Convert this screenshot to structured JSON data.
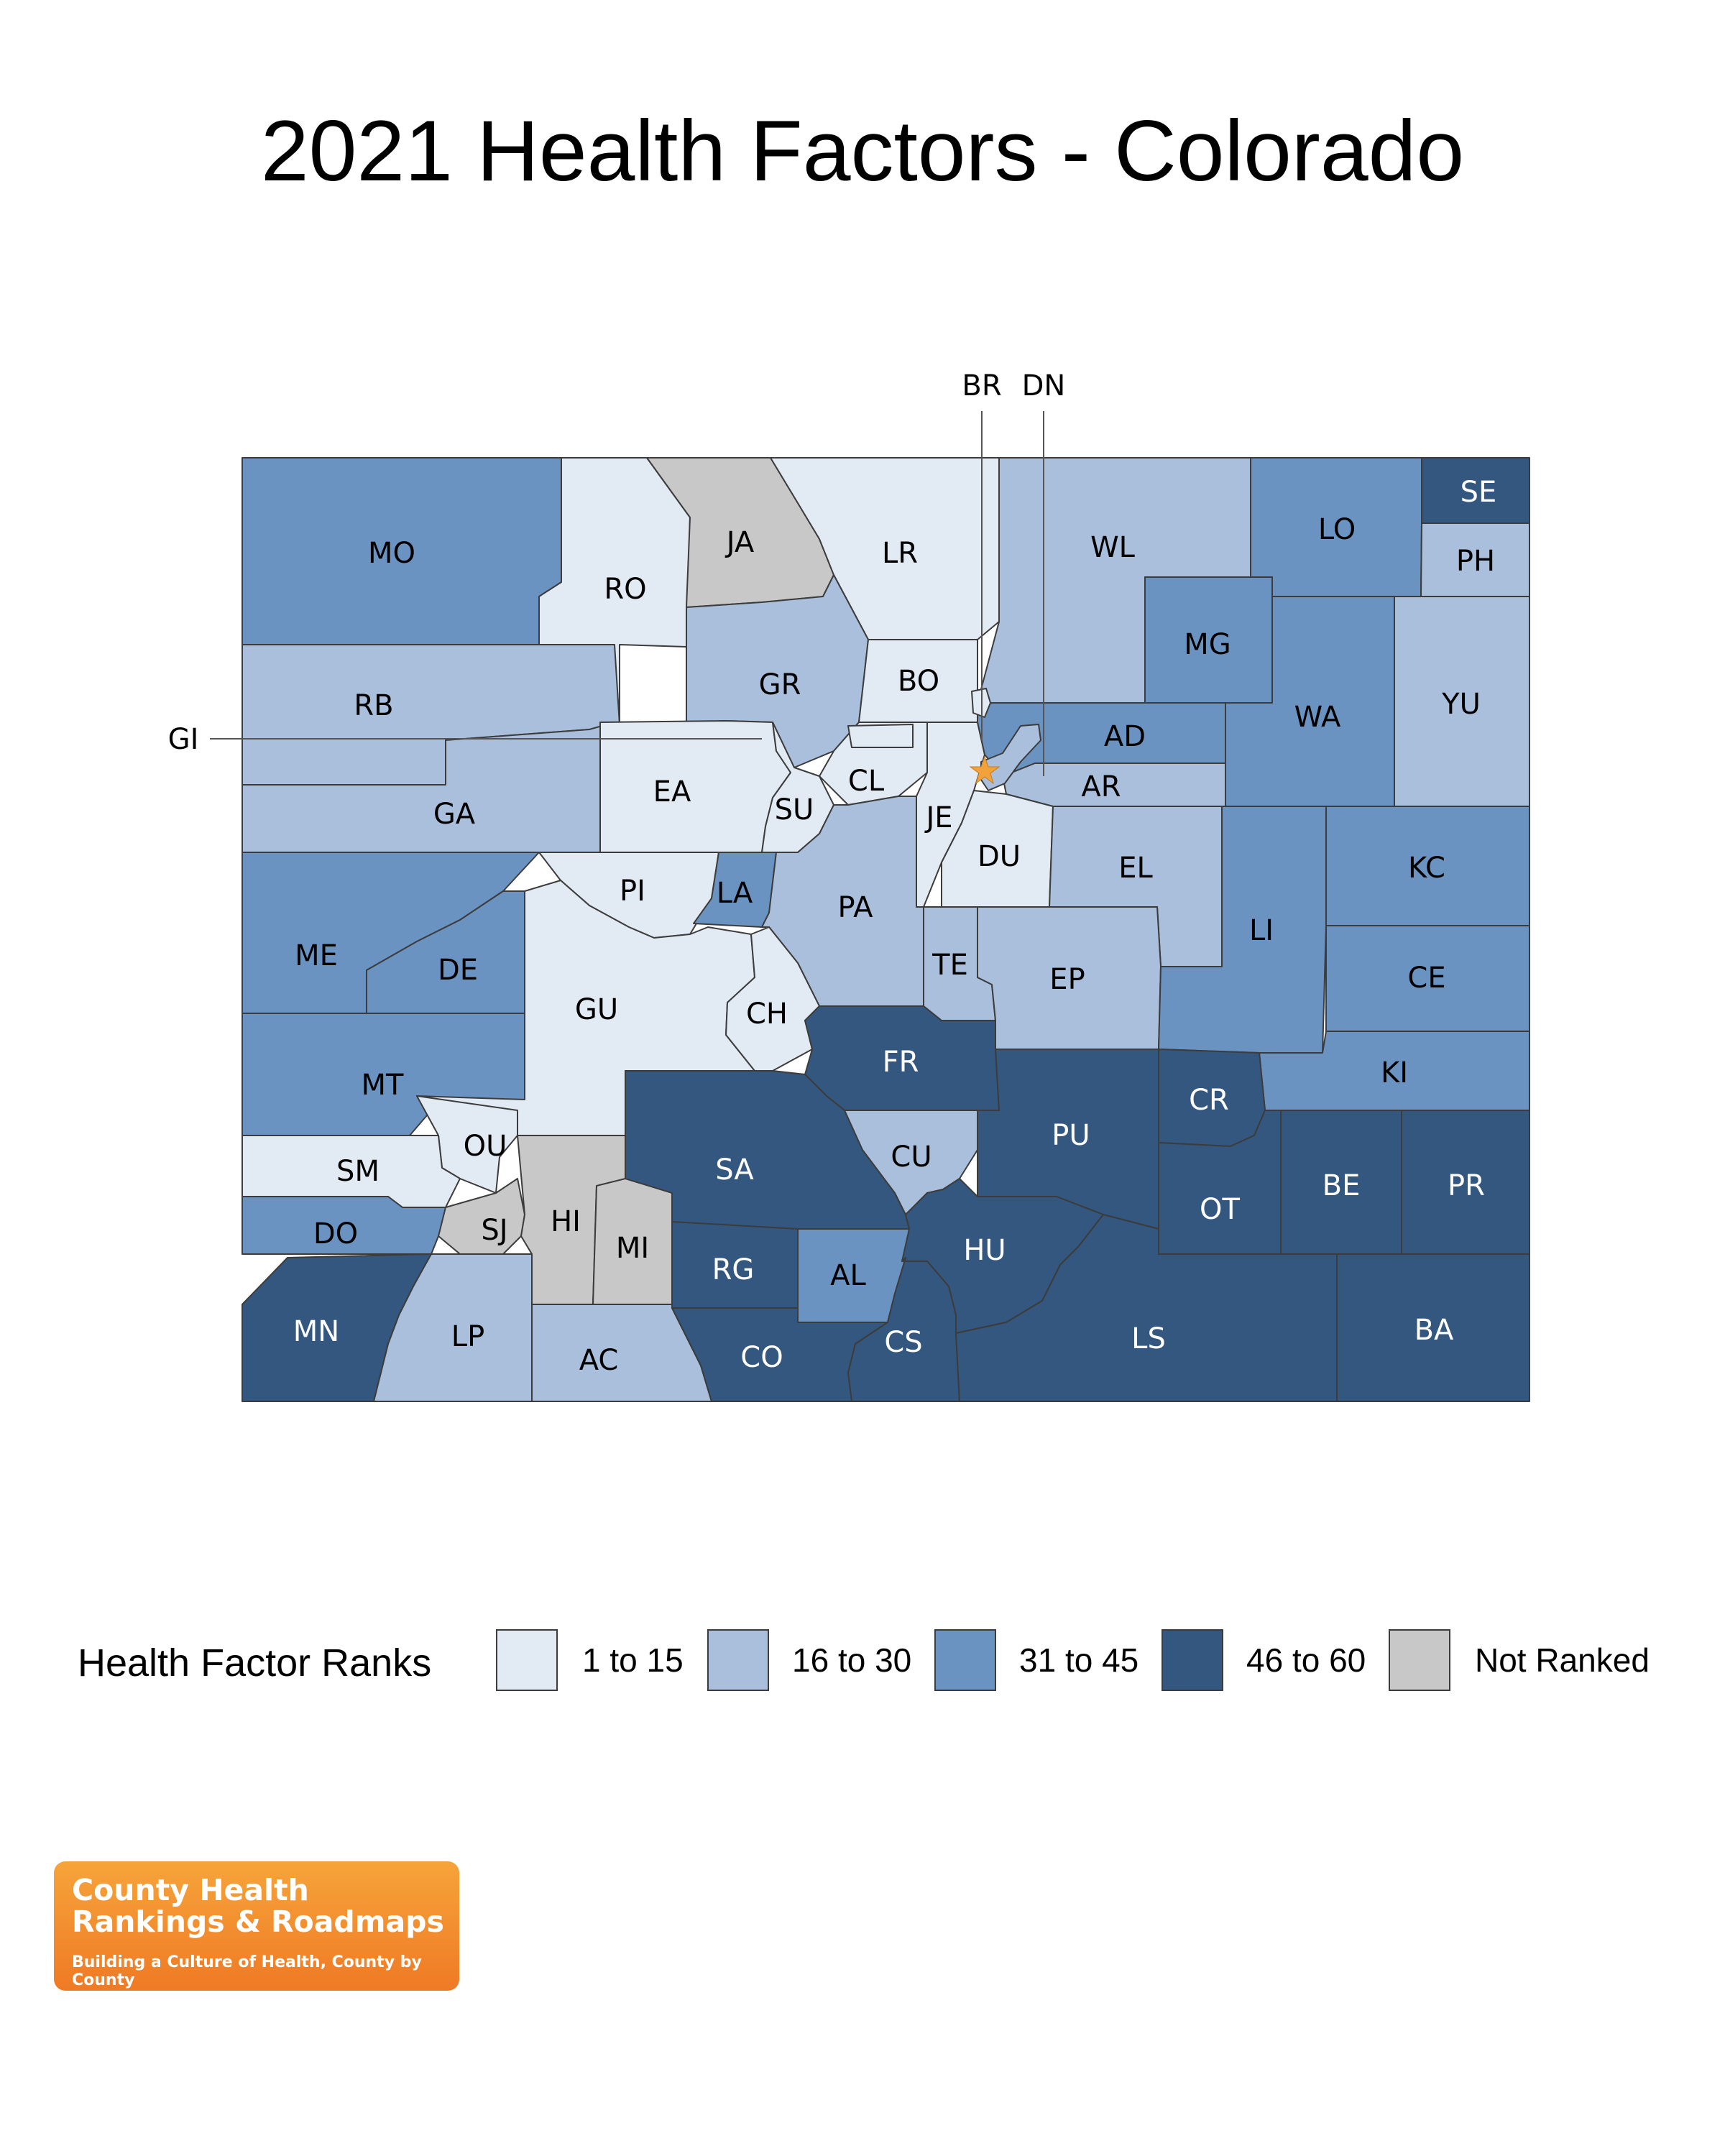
{
  "title": "2021 Health Factors - Colorado",
  "colors": {
    "1 to 15": "#e2eaf4",
    "16 to 30": "#a9bfdc",
    "31 to 45": "#6b93c2",
    "46 to 60": "#34577f",
    "Not Ranked": "#c8c8c8"
  },
  "legend": {
    "title": "Health Factor Ranks",
    "items": [
      "1 to 15",
      "16 to 30",
      "31 to 45",
      "46 to 60",
      "Not Ranked"
    ]
  },
  "counties": [
    {
      "abbr": "MO",
      "rank_group": "31 to 45"
    },
    {
      "abbr": "RO",
      "rank_group": "1 to 15"
    },
    {
      "abbr": "JA",
      "rank_group": "Not Ranked"
    },
    {
      "abbr": "LR",
      "rank_group": "1 to 15"
    },
    {
      "abbr": "WL",
      "rank_group": "16 to 30"
    },
    {
      "abbr": "LO",
      "rank_group": "31 to 45"
    },
    {
      "abbr": "SE",
      "rank_group": "46 to 60"
    },
    {
      "abbr": "PH",
      "rank_group": "16 to 30"
    },
    {
      "abbr": "RB",
      "rank_group": "16 to 30"
    },
    {
      "abbr": "GR",
      "rank_group": "16 to 30"
    },
    {
      "abbr": "BO",
      "rank_group": "1 to 15"
    },
    {
      "abbr": "MG",
      "rank_group": "31 to 45"
    },
    {
      "abbr": "WA",
      "rank_group": "31 to 45"
    },
    {
      "abbr": "YU",
      "rank_group": "16 to 30"
    },
    {
      "abbr": "GA",
      "rank_group": "16 to 30"
    },
    {
      "abbr": "EA",
      "rank_group": "1 to 15"
    },
    {
      "abbr": "SU",
      "rank_group": "1 to 15"
    },
    {
      "abbr": "CL",
      "rank_group": "1 to 15"
    },
    {
      "abbr": "JE",
      "rank_group": "1 to 15"
    },
    {
      "abbr": "AD",
      "rank_group": "31 to 45"
    },
    {
      "abbr": "AR",
      "rank_group": "16 to 30"
    },
    {
      "abbr": "DU",
      "rank_group": "1 to 15"
    },
    {
      "abbr": "EL",
      "rank_group": "16 to 30"
    },
    {
      "abbr": "KC",
      "rank_group": "31 to 45"
    },
    {
      "abbr": "ME",
      "rank_group": "31 to 45"
    },
    {
      "abbr": "DE",
      "rank_group": "31 to 45"
    },
    {
      "abbr": "PI",
      "rank_group": "1 to 15"
    },
    {
      "abbr": "LA",
      "rank_group": "31 to 45"
    },
    {
      "abbr": "PA",
      "rank_group": "16 to 30"
    },
    {
      "abbr": "TE",
      "rank_group": "16 to 30"
    },
    {
      "abbr": "EP",
      "rank_group": "16 to 30"
    },
    {
      "abbr": "LI",
      "rank_group": "31 to 45"
    },
    {
      "abbr": "CE",
      "rank_group": "31 to 45"
    },
    {
      "abbr": "GU",
      "rank_group": "1 to 15"
    },
    {
      "abbr": "CH",
      "rank_group": "1 to 15"
    },
    {
      "abbr": "FR",
      "rank_group": "46 to 60"
    },
    {
      "abbr": "MT",
      "rank_group": "31 to 45"
    },
    {
      "abbr": "KI",
      "rank_group": "31 to 45"
    },
    {
      "abbr": "CR",
      "rank_group": "46 to 60"
    },
    {
      "abbr": "OU",
      "rank_group": "1 to 15"
    },
    {
      "abbr": "SM",
      "rank_group": "1 to 15"
    },
    {
      "abbr": "SA",
      "rank_group": "46 to 60"
    },
    {
      "abbr": "CU",
      "rank_group": "16 to 30"
    },
    {
      "abbr": "PU",
      "rank_group": "46 to 60"
    },
    {
      "abbr": "OT",
      "rank_group": "46 to 60"
    },
    {
      "abbr": "BE",
      "rank_group": "46 to 60"
    },
    {
      "abbr": "PR",
      "rank_group": "46 to 60"
    },
    {
      "abbr": "DO",
      "rank_group": "31 to 45"
    },
    {
      "abbr": "SJ",
      "rank_group": "Not Ranked"
    },
    {
      "abbr": "HI",
      "rank_group": "Not Ranked"
    },
    {
      "abbr": "MI",
      "rank_group": "Not Ranked"
    },
    {
      "abbr": "RG",
      "rank_group": "46 to 60"
    },
    {
      "abbr": "AL",
      "rank_group": "31 to 45"
    },
    {
      "abbr": "HU",
      "rank_group": "46 to 60"
    },
    {
      "abbr": "MN",
      "rank_group": "46 to 60"
    },
    {
      "abbr": "LP",
      "rank_group": "16 to 30"
    },
    {
      "abbr": "AC",
      "rank_group": "16 to 30"
    },
    {
      "abbr": "CO",
      "rank_group": "46 to 60"
    },
    {
      "abbr": "CS",
      "rank_group": "46 to 60"
    },
    {
      "abbr": "LS",
      "rank_group": "46 to 60"
    },
    {
      "abbr": "BA",
      "rank_group": "46 to 60"
    }
  ],
  "callouts": {
    "br": {
      "abbr": "BR",
      "rank_group": "1 to 15"
    },
    "dn": {
      "abbr": "DN",
      "rank_group": "16 to 30"
    },
    "gi": {
      "abbr": "GI",
      "rank_group": "1 to 15"
    }
  },
  "capital_icon": "star-icon",
  "logo": {
    "line1": "County Health",
    "line2": "Rankings & Roadmaps",
    "tagline": "Building a Culture of Health, County by County"
  }
}
